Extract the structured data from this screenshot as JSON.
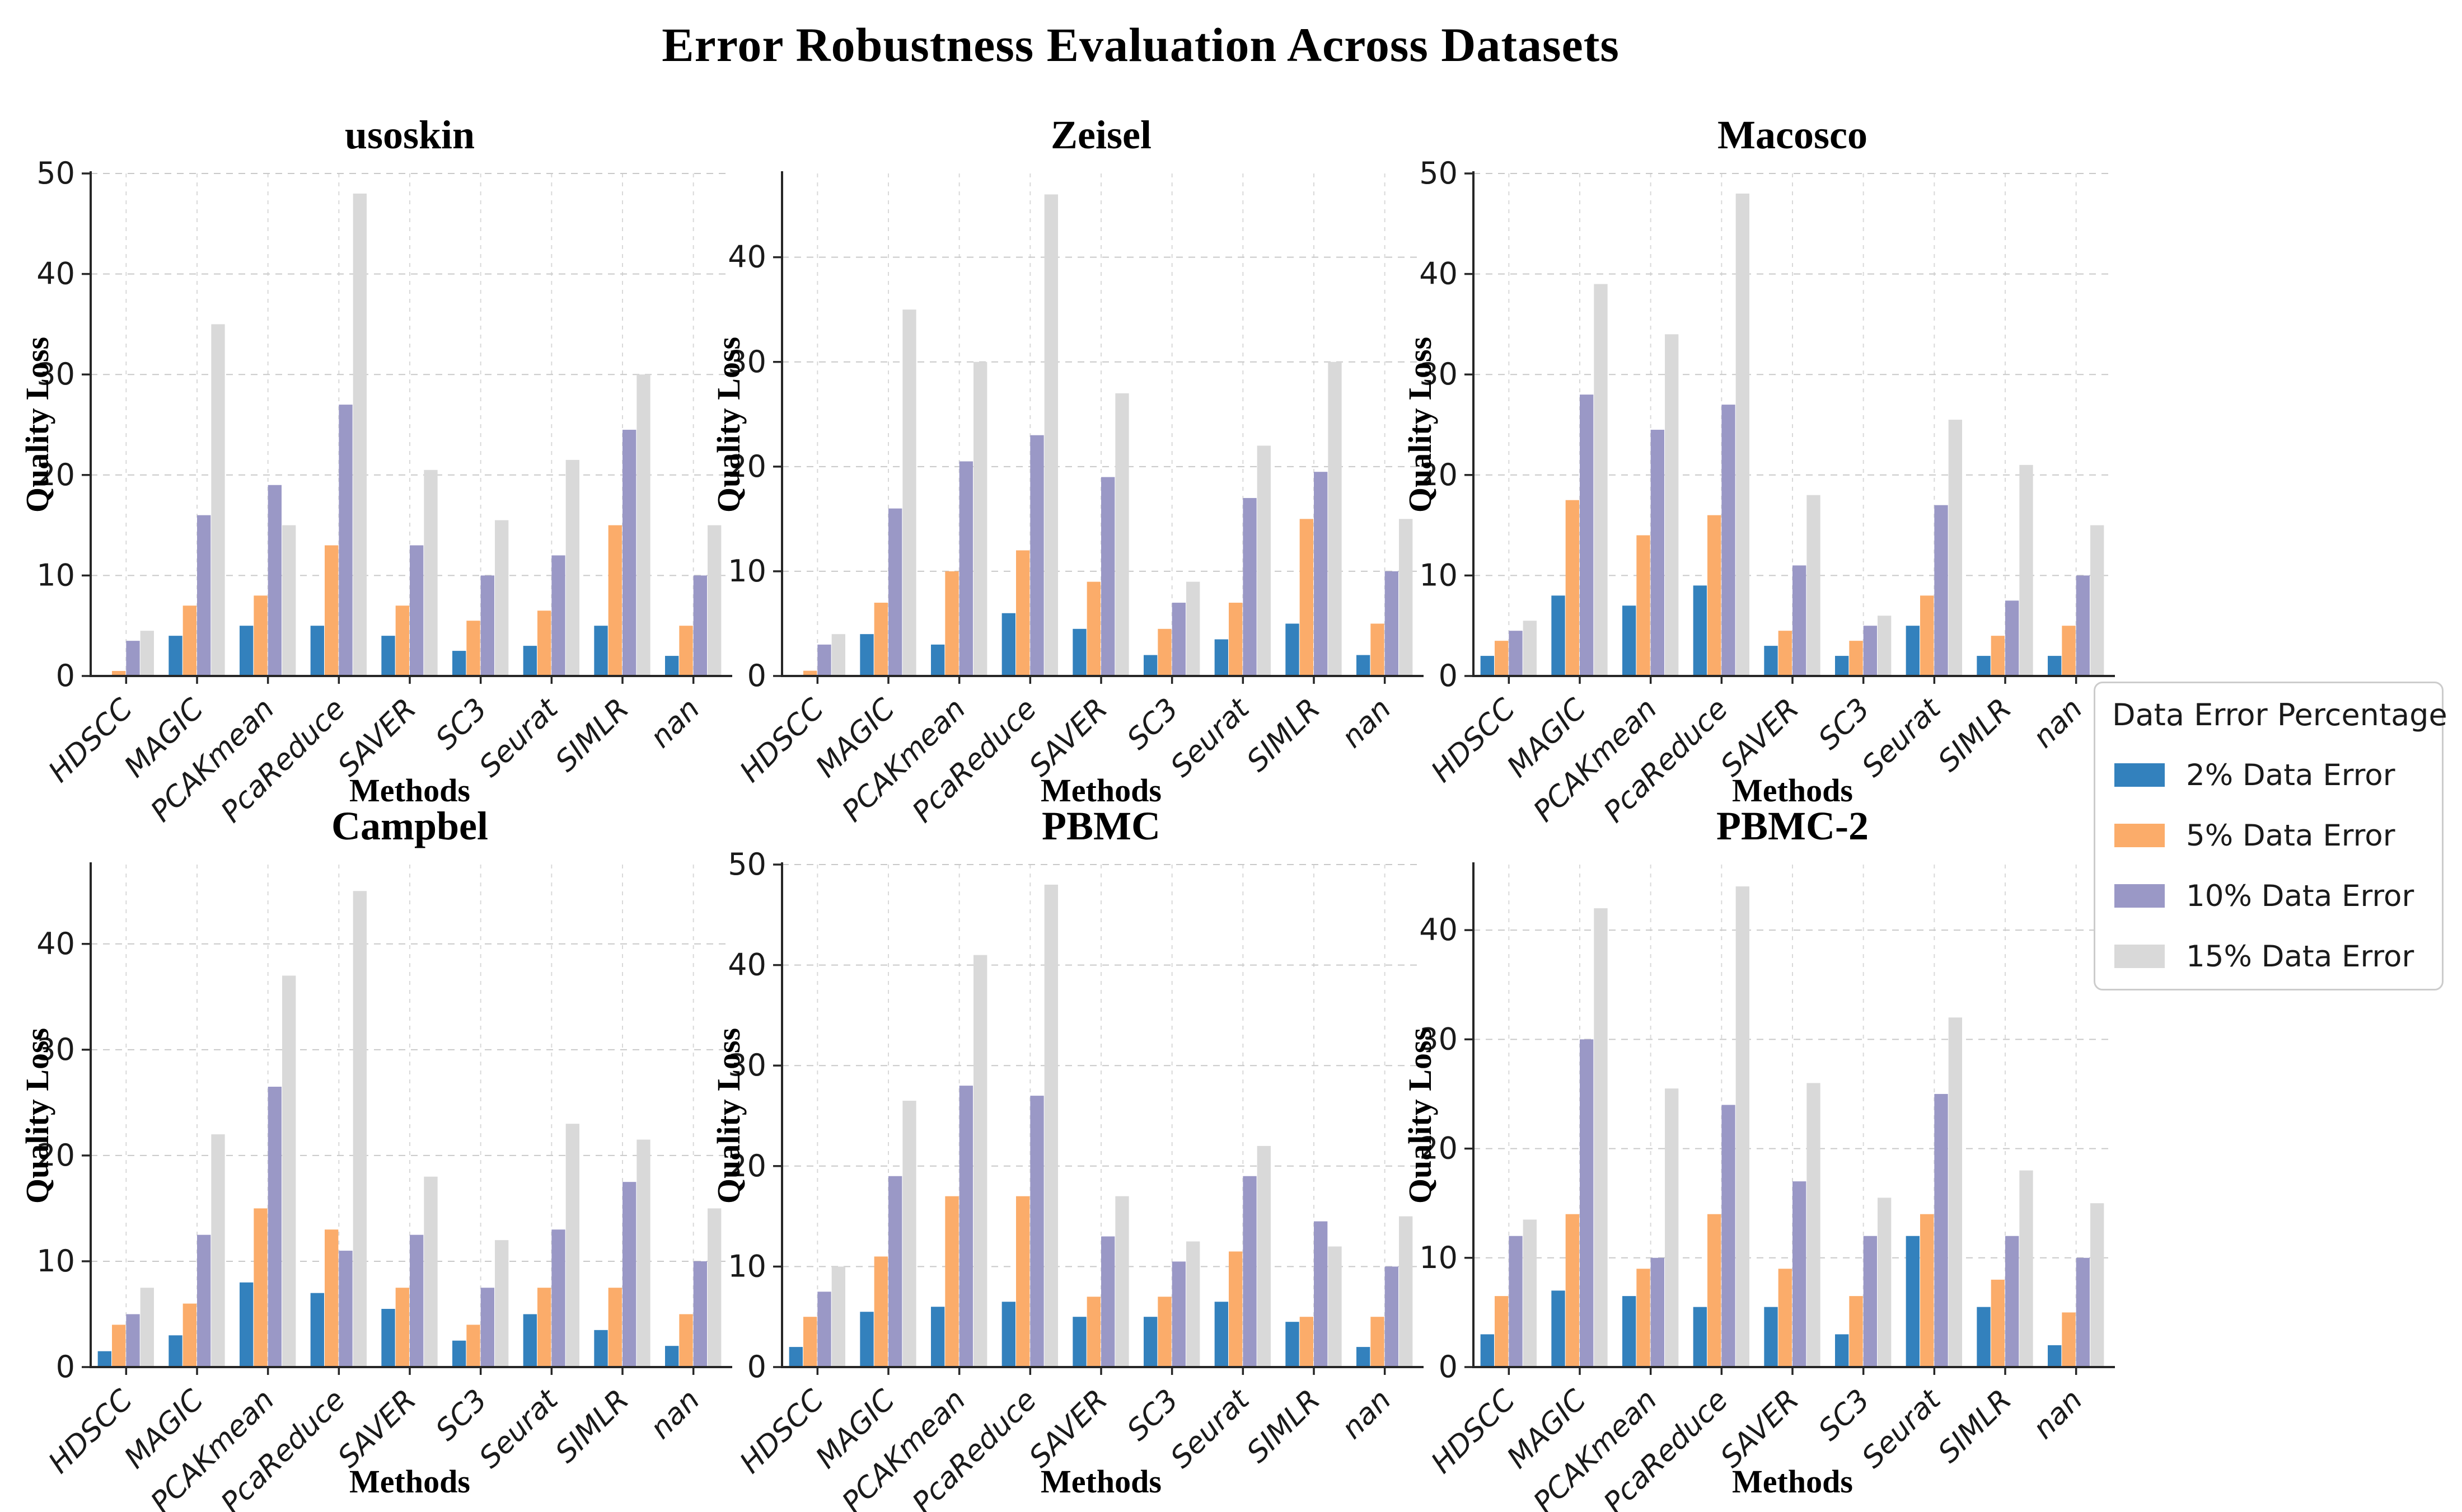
{
  "page_title": "Error Robustness Evaluation Across Datasets",
  "legend": {
    "title": "Data Error Percentage",
    "items": [
      {
        "label": "2% Data Error",
        "color": "#3381bd"
      },
      {
        "label": "5% Data Error",
        "color": "#fbac6a"
      },
      {
        "label": "10% Data Error",
        "color": "#9a98c6"
      },
      {
        "label": "15% Data Error",
        "color": "#d9d9d9"
      }
    ]
  },
  "styles": {
    "grid_h_color": "#c9c9c9",
    "grid_v_color": "#d9d9d9",
    "spine_color": "#262626",
    "tick_text_color": "#1a1a1a",
    "title_text_color": "#000000"
  },
  "chart_data": [
    {
      "type": "bar",
      "title": "usoskin",
      "xlabel": "Methods",
      "ylabel": "Quality Loss",
      "grid": true,
      "legend_position": "outside-right",
      "categories": [
        "HDSCC",
        "MAGIC",
        "PCAKmean",
        "PcaReduce",
        "SAVER",
        "SC3",
        "Seurat",
        "SIMLR",
        "nan"
      ],
      "series": [
        {
          "name": "2% Data Error",
          "values": [
            0,
            4,
            5,
            5,
            4,
            2.5,
            3,
            5,
            2
          ]
        },
        {
          "name": "5% Data Error",
          "values": [
            0.5,
            7,
            8,
            13,
            7,
            5.5,
            6.5,
            15,
            5
          ]
        },
        {
          "name": "10% Data Error",
          "values": [
            3.5,
            16,
            19,
            27,
            13,
            10,
            12,
            24.5,
            10
          ]
        },
        {
          "name": "15% Data Error",
          "values": [
            4.5,
            35,
            15,
            48,
            20.5,
            15.5,
            21.5,
            30,
            15
          ]
        }
      ],
      "ylim": [
        0,
        50
      ],
      "yticks": [
        0,
        10,
        20,
        30,
        40,
        50
      ]
    },
    {
      "type": "bar",
      "title": "Zeisel",
      "xlabel": "Methods",
      "ylabel": "Quality Loss",
      "grid": true,
      "legend_position": "outside-right",
      "categories": [
        "HDSCC",
        "MAGIC",
        "PCAKmean",
        "PcaReduce",
        "SAVER",
        "SC3",
        "Seurat",
        "SIMLR",
        "nan"
      ],
      "series": [
        {
          "name": "2% Data Error",
          "values": [
            0,
            4,
            3,
            6,
            4.5,
            2,
            3.5,
            5,
            2
          ]
        },
        {
          "name": "5% Data Error",
          "values": [
            0.5,
            7,
            10,
            12,
            9,
            4.5,
            7,
            15,
            5
          ]
        },
        {
          "name": "10% Data Error",
          "values": [
            3,
            16,
            20.5,
            23,
            19,
            7,
            17,
            19.5,
            10
          ]
        },
        {
          "name": "15% Data Error",
          "values": [
            4,
            35,
            30,
            46,
            27,
            9,
            22,
            30,
            15
          ]
        }
      ],
      "ylim": [
        0,
        48
      ],
      "yticks": [
        0,
        10,
        20,
        30,
        40
      ]
    },
    {
      "type": "bar",
      "title": "Macosco",
      "xlabel": "Methods",
      "ylabel": "Quality Loss",
      "grid": true,
      "legend_position": "outside-right",
      "categories": [
        "HDSCC",
        "MAGIC",
        "PCAKmean",
        "PcaReduce",
        "SAVER",
        "SC3",
        "Seurat",
        "SIMLR",
        "nan"
      ],
      "series": [
        {
          "name": "2% Data Error",
          "values": [
            2,
            8,
            7,
            9,
            3,
            2,
            5,
            2,
            2
          ]
        },
        {
          "name": "5% Data Error",
          "values": [
            3.5,
            17.5,
            14,
            16,
            4.5,
            3.5,
            8,
            4,
            5
          ]
        },
        {
          "name": "10% Data Error",
          "values": [
            4.5,
            28,
            24.5,
            27,
            11,
            5,
            17,
            7.5,
            10
          ]
        },
        {
          "name": "15% Data Error",
          "values": [
            5.5,
            39,
            34,
            48,
            18,
            6,
            25.5,
            21,
            15
          ]
        }
      ],
      "ylim": [
        0,
        50
      ],
      "yticks": [
        0,
        10,
        20,
        30,
        40,
        50
      ]
    },
    {
      "type": "bar",
      "title": "Campbel",
      "xlabel": "Methods",
      "ylabel": "Quality Loss",
      "grid": true,
      "legend_position": "outside-right",
      "categories": [
        "HDSCC",
        "MAGIC",
        "PCAKmean",
        "PcaReduce",
        "SAVER",
        "SC3",
        "Seurat",
        "SIMLR",
        "nan"
      ],
      "series": [
        {
          "name": "2% Data Error",
          "values": [
            1.5,
            3,
            8,
            7,
            5.5,
            2.5,
            5,
            3.5,
            2
          ]
        },
        {
          "name": "5% Data Error",
          "values": [
            4,
            6,
            15,
            13,
            7.5,
            4,
            7.5,
            7.5,
            5
          ]
        },
        {
          "name": "10% Data Error",
          "values": [
            5,
            12.5,
            26.5,
            11,
            12.5,
            7.5,
            13,
            17.5,
            10
          ]
        },
        {
          "name": "15% Data Error",
          "values": [
            7.5,
            22,
            37,
            45,
            18,
            12,
            23,
            21.5,
            15
          ]
        }
      ],
      "ylim": [
        0,
        47.5
      ],
      "yticks": [
        0,
        10,
        20,
        30,
        40
      ]
    },
    {
      "type": "bar",
      "title": "PBMC",
      "xlabel": "Methods",
      "ylabel": "Quality Loss",
      "grid": true,
      "legend_position": "outside-right",
      "categories": [
        "HDSCC",
        "MAGIC",
        "PCAKmean",
        "PcaReduce",
        "SAVER",
        "SC3",
        "Seurat",
        "SIMLR",
        "nan"
      ],
      "series": [
        {
          "name": "2% Data Error",
          "values": [
            2,
            5.5,
            6,
            6.5,
            5,
            5,
            6.5,
            4.5,
            2
          ]
        },
        {
          "name": "5% Data Error",
          "values": [
            5,
            11,
            17,
            17,
            7,
            7,
            11.5,
            5,
            5
          ]
        },
        {
          "name": "10% Data Error",
          "values": [
            7.5,
            19,
            28,
            27,
            13,
            10.5,
            19,
            14.5,
            10
          ]
        },
        {
          "name": "15% Data Error",
          "values": [
            10,
            26.5,
            41,
            48,
            17,
            12.5,
            22,
            12,
            15
          ]
        }
      ],
      "ylim": [
        0,
        50
      ],
      "yticks": [
        0,
        10,
        20,
        30,
        40,
        50
      ]
    },
    {
      "type": "bar",
      "title": "PBMC-2",
      "xlabel": "Methods",
      "ylabel": "Quality Loss",
      "grid": true,
      "legend_position": "outside-right",
      "categories": [
        "HDSCC",
        "MAGIC",
        "PCAKmean",
        "PcaReduce",
        "SAVER",
        "SC3",
        "Seurat",
        "SIMLR",
        "nan"
      ],
      "series": [
        {
          "name": "2% Data Error",
          "values": [
            3,
            7,
            6.5,
            5.5,
            5.5,
            3,
            12,
            5.5,
            2
          ]
        },
        {
          "name": "5% Data Error",
          "values": [
            6.5,
            14,
            9,
            14,
            9,
            6.5,
            14,
            8,
            5
          ]
        },
        {
          "name": "10% Data Error",
          "values": [
            12,
            30,
            10,
            24,
            17,
            12,
            25,
            12,
            10
          ]
        },
        {
          "name": "15% Data Error",
          "values": [
            13.5,
            42,
            25.5,
            44,
            26,
            15.5,
            32,
            18,
            15
          ]
        }
      ],
      "ylim": [
        0,
        46
      ],
      "yticks": [
        0,
        10,
        20,
        30,
        40
      ]
    }
  ]
}
